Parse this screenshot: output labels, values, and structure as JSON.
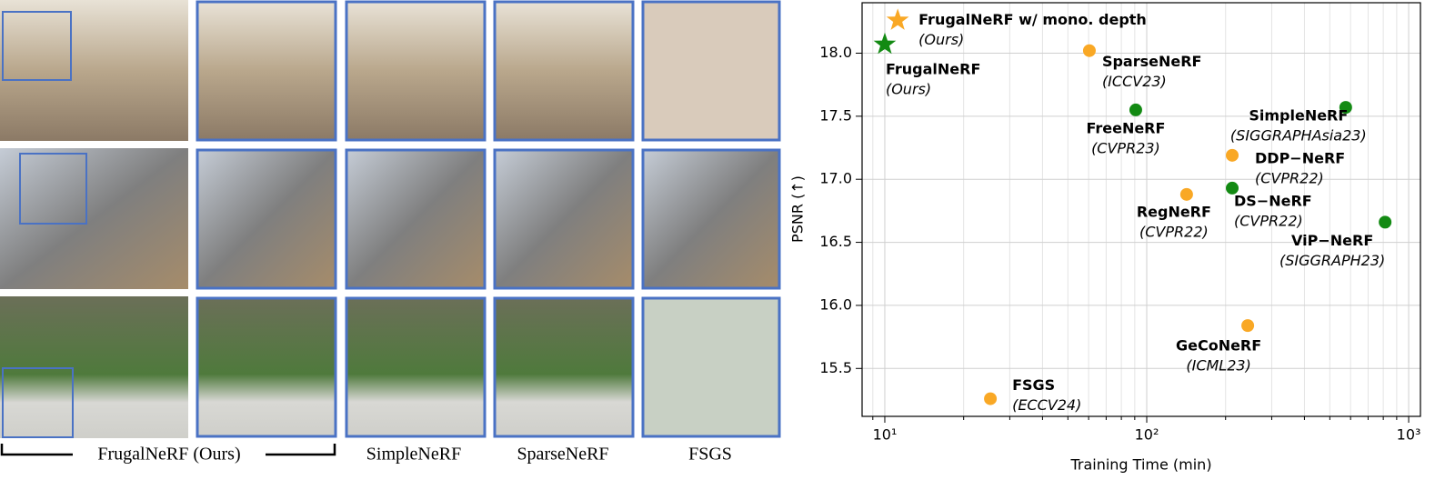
{
  "panel_labels": [
    "FrugalNeRF (Ours)",
    "SimpleNeRF",
    "SparseNeRF",
    "FSGS"
  ],
  "chart_data": {
    "type": "scatter",
    "xlabel": "Training Time (min)",
    "ylabel": "PSNR (↑)",
    "xscale": "log",
    "grid": true,
    "xlim": [
      8.19,
      1109
    ],
    "ylim": [
      15.12,
      18.4
    ],
    "xticks": [
      {
        "value": 10,
        "label": "10¹"
      },
      {
        "value": 100,
        "label": "10²"
      },
      {
        "value": 1000,
        "label": "10³"
      }
    ],
    "xminorticks": [
      9,
      20,
      30,
      40,
      50,
      60,
      70,
      80,
      90,
      200,
      300,
      400,
      500,
      600,
      700,
      800,
      900
    ],
    "yticks": [
      {
        "value": 15.5,
        "label": "15.5"
      },
      {
        "value": 16,
        "label": "16.0"
      },
      {
        "value": 16.5,
        "label": "16.5"
      },
      {
        "value": 17,
        "label": "17.0"
      },
      {
        "value": 17.5,
        "label": "17.5"
      },
      {
        "value": 18,
        "label": "18.0"
      }
    ],
    "points": [
      {
        "label": "FrugalNeRF w/ mono. depth",
        "sublabel": "(Ours)",
        "x": 11.2,
        "y": 18.26,
        "color": "#f9a825",
        "marker": "star"
      },
      {
        "label": "FrugalNeRF",
        "sublabel": "(Ours)",
        "x": 10.0,
        "y": 18.07,
        "color": "#138a13",
        "marker": "star"
      },
      {
        "label": "SparseNeRF",
        "sublabel": "(ICCV23)",
        "x": 60.4,
        "y": 18.02,
        "color": "#f9a825",
        "marker": "circle"
      },
      {
        "label": "FreeNeRF",
        "sublabel": "(CVPR23)",
        "x": 90.8,
        "y": 17.55,
        "color": "#138a13",
        "marker": "circle"
      },
      {
        "label": "SimpleNeRF",
        "sublabel": "(SIGGRAPHAsia23)",
        "x": 575,
        "y": 17.57,
        "color": "#138a13",
        "marker": "circle"
      },
      {
        "label": "DDP−NeRF",
        "sublabel": "(CVPR22)",
        "x": 212,
        "y": 17.19,
        "color": "#f9a825",
        "marker": "circle"
      },
      {
        "label": "DS−NeRF",
        "sublabel": "(CVPR22)",
        "x": 212,
        "y": 16.93,
        "color": "#138a13",
        "marker": "circle"
      },
      {
        "label": "RegNeRF",
        "sublabel": "(CVPR22)",
        "x": 142,
        "y": 16.88,
        "color": "#f9a825",
        "marker": "circle"
      },
      {
        "label": "ViP−NeRF",
        "sublabel": "(SIGGRAPH23)",
        "x": 813,
        "y": 16.66,
        "color": "#138a13",
        "marker": "circle"
      },
      {
        "label": "GeCoNeRF",
        "sublabel": "(ICML23)",
        "x": 243,
        "y": 15.84,
        "color": "#f9a825",
        "marker": "circle"
      },
      {
        "label": "FSGS",
        "sublabel": "(ECCV24)",
        "x": 25.3,
        "y": 15.26,
        "color": "#f9a825",
        "marker": "circle"
      }
    ]
  }
}
